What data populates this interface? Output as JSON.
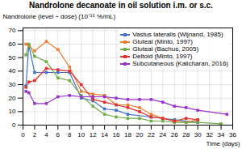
{
  "chart_data": {
    "type": "line",
    "title": "Nandrolone decanoate in oil solution i.m. or s.c.",
    "xlabel": "Time (days)",
    "ylabel": "Nandrolone (level ÷ dose) (10⁻¹⁵ %/mL)",
    "xlim": [
      0,
      36
    ],
    "ylim": [
      0,
      72
    ],
    "xticks": [
      0,
      2,
      4,
      6,
      8,
      10,
      12,
      14,
      16,
      18,
      20,
      22,
      24,
      26,
      28,
      30,
      32,
      34,
      36
    ],
    "yticks": [
      0,
      10,
      20,
      30,
      40,
      50,
      60,
      70
    ],
    "grid": true,
    "legend": "upper right",
    "marker": "square",
    "series": [
      {
        "name": "Vastus lateralis (Wijnand, 1985)",
        "color": "#4472c4",
        "x": [
          0.5,
          1,
          2,
          4,
          6,
          8,
          10,
          12,
          14,
          16,
          18,
          22,
          26,
          30
        ],
        "values": [
          29,
          59,
          39,
          39,
          39,
          39,
          20,
          18,
          12,
          11,
          8,
          6,
          4,
          2
        ]
      },
      {
        "name": "Gluteal (Minto, 1997)",
        "color": "#ed7d31",
        "x": [
          0.5,
          1,
          2,
          4,
          6,
          8,
          10,
          12,
          14,
          16,
          18,
          20,
          22,
          24,
          26,
          28,
          30
        ],
        "values": [
          60,
          59,
          55,
          62,
          56,
          43,
          25,
          23,
          22,
          15,
          15,
          13,
          8,
          5,
          3,
          2,
          4
        ]
      },
      {
        "name": "Gluteal (Bachus, 2005)",
        "color": "#70ad47",
        "x": [
          0.5,
          1,
          2,
          4,
          6,
          8,
          10,
          12,
          14,
          16,
          18,
          20,
          22,
          24,
          26,
          28,
          30,
          34
        ],
        "values": [
          52,
          60,
          51,
          47,
          35,
          33,
          22,
          14,
          8,
          6,
          5,
          5,
          3,
          3,
          2,
          2,
          2,
          1
        ]
      },
      {
        "name": "Deltoid (Minto, 1997)",
        "color": "#e03030",
        "x": [
          0.5,
          1,
          2,
          4,
          6,
          8,
          10,
          12,
          14,
          16,
          18,
          20,
          22,
          24,
          26,
          28,
          30
        ],
        "values": [
          28,
          32,
          33,
          42,
          41,
          40,
          30,
          19,
          17,
          15,
          13,
          10,
          6,
          5,
          3,
          5,
          4
        ]
      },
      {
        "name": "Subcutaneous (Kalicharan, 2016)",
        "color": "#9933cc",
        "x": [
          0.5,
          1,
          2,
          4,
          6,
          8,
          10,
          12,
          14,
          16,
          18,
          20,
          22,
          24,
          26,
          28,
          30,
          35
        ],
        "values": [
          25,
          24,
          16,
          16,
          21,
          22,
          21,
          21,
          21,
          20,
          19,
          19,
          19,
          17,
          14,
          13,
          11,
          8
        ]
      }
    ]
  }
}
